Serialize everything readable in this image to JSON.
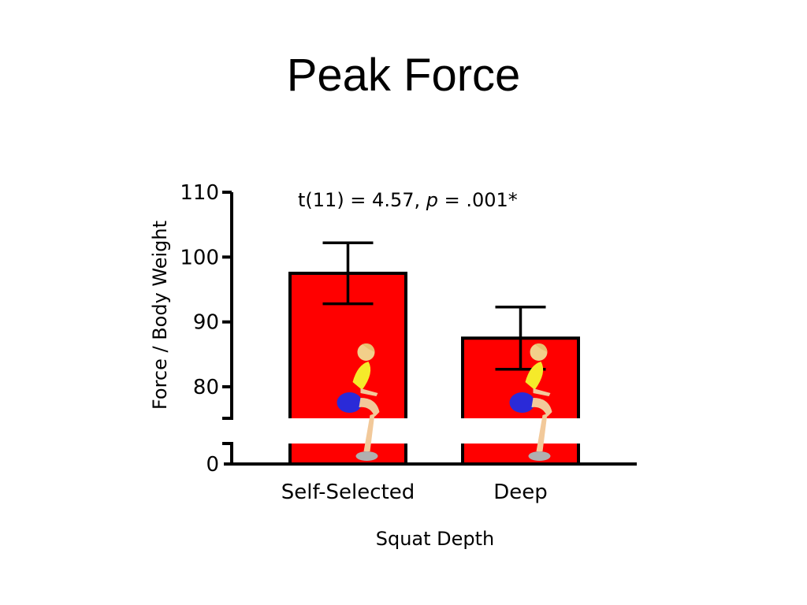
{
  "title": "Peak Force",
  "stat": {
    "prefix": "t(11) = 4.57, ",
    "p": "p",
    "suffix": " = .001*"
  },
  "chart_data": {
    "type": "bar",
    "title": "Peak Force",
    "xlabel": "Squat Depth",
    "ylabel": "Force / Body Weight",
    "categories": [
      "Self-Selected",
      "Deep"
    ],
    "values": [
      97.5,
      87.5
    ],
    "error": [
      4.7,
      4.8
    ],
    "ylim": [
      0,
      110
    ],
    "axis_break": [
      0,
      75
    ],
    "yticks": [
      0,
      80,
      90,
      100,
      110
    ],
    "annotation": "t(11) = 4.57, p = .001*",
    "grid": false,
    "colors": {
      "bar": "#ff0000",
      "outline": "#000000"
    },
    "icons": [
      "squat-figure-icon"
    ]
  }
}
